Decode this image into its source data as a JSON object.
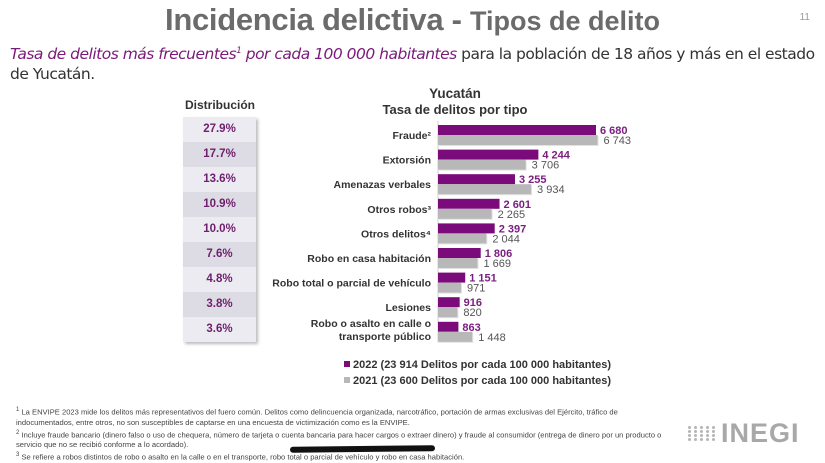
{
  "header": {
    "title_main": "Incidencia delictiva - ",
    "title_sub": "Tipos de delito",
    "page_number": "11"
  },
  "subtitle": {
    "italic_part": "Tasa de delitos más frecuentes",
    "sup": "1",
    "italic_part2": " por cada 100 000 habitantes",
    "rest": " para la población de 18 años y más en el estado de Yucatán."
  },
  "distribution": {
    "heading": "Distribución",
    "values": [
      "27.9%",
      "17.7%",
      "13.6%",
      "10.9%",
      "10.0%",
      "7.6%",
      "4.8%",
      "3.8%",
      "3.6%"
    ]
  },
  "chart_data": {
    "type": "bar",
    "orientation": "horizontal",
    "title": "Yucatán",
    "subtitle": "Tasa de delitos por tipo",
    "categories": [
      "Fraude²",
      "Extorsión",
      "Amenazas verbales",
      "Otros robos³",
      "Otros delitos⁴",
      "Robo en casa habitación",
      "Robo total o parcial de vehículo",
      "Lesiones",
      "Robo o asalto en calle o transporte público"
    ],
    "series": [
      {
        "name": "2022",
        "legend": "2022 (23 914 Delitos por cada 100 000 habitantes)",
        "values": [
          6680,
          4244,
          3255,
          2601,
          2397,
          1806,
          1151,
          916,
          863
        ],
        "labels": [
          "6 680",
          "4 244",
          "3 255",
          "2 601",
          "2 397",
          "1 806",
          "1 151",
          "916",
          "863"
        ],
        "color": "#7b0a7b"
      },
      {
        "name": "2021",
        "legend": "2021 (23 600 Delitos por cada 100 000 habitantes)",
        "values": [
          6743,
          3706,
          3934,
          2265,
          2044,
          1669,
          971,
          820,
          1448
        ],
        "labels": [
          "6 743",
          "3 706",
          "3 934",
          "2 265",
          "2 044",
          "1 669",
          "971",
          "820",
          "1 448"
        ],
        "color": "#b8b8b8"
      }
    ],
    "xlim": [
      0,
      7000
    ],
    "grid": false,
    "legend_position": "bottom"
  },
  "footnotes": [
    {
      "sup": "1",
      "text": " La ENVIPE 2023 mide los delitos más representativos del fuero común. Delitos como delincuencia organizada, narcotráfico, portación de armas exclusivas del Ejército, tráfico de indocumentados, entre otros, no son susceptibles de captarse en una encuesta de victimización como es la ENVIPE."
    },
    {
      "sup": "2",
      "text": " Incluye fraude bancario (dinero falso o uso de chequera, número de tarjeta o cuenta bancaria para hacer cargos o extraer dinero) y fraude al consumidor (entrega de dinero por un producto o servicio que no se recibió conforme a lo acordado)."
    },
    {
      "sup": "3",
      "text": " Se refiere a robos distintos de robo o asalto en la calle o en el transporte, robo total o parcial de vehículo y robo en casa habitación."
    }
  ],
  "logo": {
    "text": "INEGI"
  }
}
